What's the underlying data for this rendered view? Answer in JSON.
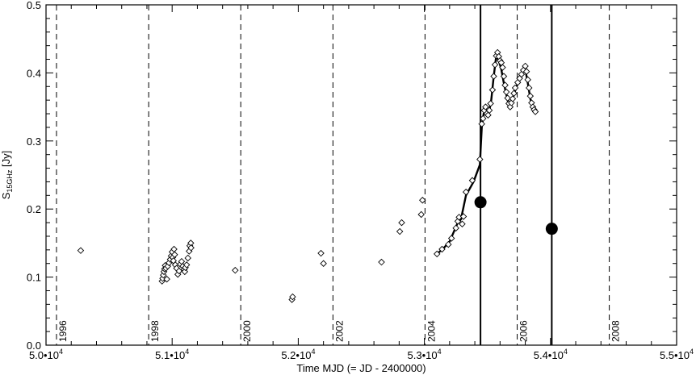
{
  "chart_data": {
    "type": "scatter",
    "xlabel": "Time MJD (= JD - 2400000)",
    "ylabel": "S",
    "ylabel_sub": "15GHz",
    "ylabel_unit": " [Jy]",
    "xlim": [
      50000,
      55000
    ],
    "ylim": [
      0.0,
      0.5
    ],
    "xticks": [
      {
        "value": 50000,
        "mant": "5.0",
        "exp": "4"
      },
      {
        "value": 51000,
        "mant": "5.1",
        "exp": "4"
      },
      {
        "value": 52000,
        "mant": "5.2",
        "exp": "4"
      },
      {
        "value": 53000,
        "mant": "5.3",
        "exp": "4"
      },
      {
        "value": 54000,
        "mant": "5.4",
        "exp": "4"
      },
      {
        "value": 55000,
        "mant": "5.5",
        "exp": "4"
      }
    ],
    "yticks": [
      {
        "value": 0.0,
        "label": "0.0"
      },
      {
        "value": 0.1,
        "label": "0.1"
      },
      {
        "value": 0.2,
        "label": "0.2"
      },
      {
        "value": 0.3,
        "label": "0.3"
      },
      {
        "value": 0.4,
        "label": "0.4"
      },
      {
        "value": 0.5,
        "label": "0.5"
      }
    ],
    "year_markers": [
      {
        "mjd": 50083,
        "label": "1996"
      },
      {
        "mjd": 50814,
        "label": "1998"
      },
      {
        "mjd": 51544,
        "label": "2000"
      },
      {
        "mjd": 52275,
        "label": "2002"
      },
      {
        "mjd": 53005,
        "label": "2004"
      },
      {
        "mjd": 53736,
        "label": "2006"
      },
      {
        "mjd": 54466,
        "label": "2008"
      }
    ],
    "event_lines": [
      53445,
      54010
    ],
    "series": [
      {
        "marker": "diamond",
        "points": [
          [
            50275,
            0.139
          ],
          [
            50920,
            0.094
          ],
          [
            50925,
            0.098
          ],
          [
            50930,
            0.103
          ],
          [
            50935,
            0.108
          ],
          [
            50940,
            0.112
          ],
          [
            50945,
            0.117
          ],
          [
            50950,
            0.113
          ],
          [
            50958,
            0.097
          ],
          [
            50965,
            0.116
          ],
          [
            50975,
            0.121
          ],
          [
            50985,
            0.126
          ],
          [
            50992,
            0.131
          ],
          [
            51000,
            0.137
          ],
          [
            51005,
            0.129
          ],
          [
            51010,
            0.124
          ],
          [
            51015,
            0.141
          ],
          [
            51020,
            0.133
          ],
          [
            51025,
            0.118
          ],
          [
            51035,
            0.113
          ],
          [
            51045,
            0.104
          ],
          [
            51055,
            0.109
          ],
          [
            51065,
            0.119
          ],
          [
            51075,
            0.123
          ],
          [
            51085,
            0.116
          ],
          [
            51095,
            0.111
          ],
          [
            51100,
            0.108
          ],
          [
            51105,
            0.114
          ],
          [
            51115,
            0.118
          ],
          [
            51125,
            0.128
          ],
          [
            51135,
            0.138
          ],
          [
            51140,
            0.146
          ],
          [
            51148,
            0.15
          ],
          [
            51150,
            0.143
          ],
          [
            51500,
            0.11
          ],
          [
            51950,
            0.067
          ],
          [
            51955,
            0.071
          ],
          [
            52180,
            0.135
          ],
          [
            52200,
            0.12
          ],
          [
            52660,
            0.122
          ],
          [
            52805,
            0.167
          ],
          [
            52820,
            0.18
          ],
          [
            52975,
            0.192
          ],
          [
            52985,
            0.213
          ],
          [
            53100,
            0.134
          ],
          [
            53140,
            0.141
          ],
          [
            53190,
            0.148
          ],
          [
            53215,
            0.157
          ],
          [
            53250,
            0.172
          ],
          [
            53265,
            0.182
          ],
          [
            53275,
            0.188
          ],
          [
            53300,
            0.178
          ],
          [
            53310,
            0.189
          ],
          [
            53330,
            0.225
          ],
          [
            53380,
            0.242
          ],
          [
            53440,
            0.273
          ],
          [
            53455,
            0.325
          ],
          [
            53465,
            0.333
          ],
          [
            53475,
            0.345
          ],
          [
            53485,
            0.35
          ],
          [
            53495,
            0.34
          ],
          [
            53505,
            0.338
          ],
          [
            53515,
            0.345
          ],
          [
            53525,
            0.355
          ],
          [
            53540,
            0.375
          ],
          [
            53550,
            0.395
          ],
          [
            53560,
            0.412
          ],
          [
            53570,
            0.425
          ],
          [
            53580,
            0.43
          ],
          [
            53590,
            0.424
          ],
          [
            53600,
            0.418
          ],
          [
            53610,
            0.415
          ],
          [
            53620,
            0.408
          ],
          [
            53630,
            0.395
          ],
          [
            53640,
            0.382
          ],
          [
            53650,
            0.372
          ],
          [
            53660,
            0.363
          ],
          [
            53670,
            0.355
          ],
          [
            53680,
            0.35
          ],
          [
            53690,
            0.356
          ],
          [
            53700,
            0.362
          ],
          [
            53710,
            0.37
          ],
          [
            53720,
            0.378
          ],
          [
            53740,
            0.386
          ],
          [
            53755,
            0.392
          ],
          [
            53770,
            0.398
          ],
          [
            53785,
            0.404
          ],
          [
            53800,
            0.41
          ],
          [
            53810,
            0.402
          ],
          [
            53820,
            0.39
          ],
          [
            53830,
            0.378
          ],
          [
            53840,
            0.366
          ],
          [
            53850,
            0.356
          ],
          [
            53860,
            0.35
          ],
          [
            53870,
            0.346
          ],
          [
            53880,
            0.343
          ]
        ]
      },
      {
        "marker": "line",
        "points": [
          [
            53100,
            0.134
          ],
          [
            53150,
            0.142
          ],
          [
            53200,
            0.152
          ],
          [
            53260,
            0.178
          ],
          [
            53290,
            0.185
          ],
          [
            53330,
            0.22
          ],
          [
            53390,
            0.24
          ],
          [
            53440,
            0.265
          ],
          [
            53455,
            0.32
          ],
          [
            53470,
            0.34
          ],
          [
            53490,
            0.345
          ],
          [
            53510,
            0.34
          ],
          [
            53530,
            0.36
          ],
          [
            53550,
            0.395
          ],
          [
            53570,
            0.425
          ],
          [
            53590,
            0.418
          ],
          [
            53610,
            0.405
          ],
          [
            53630,
            0.385
          ],
          [
            53650,
            0.368
          ],
          [
            53670,
            0.352
          ],
          [
            53690,
            0.355
          ],
          [
            53710,
            0.368
          ],
          [
            53740,
            0.385
          ],
          [
            53770,
            0.398
          ],
          [
            53800,
            0.405
          ],
          [
            53820,
            0.385
          ],
          [
            53840,
            0.362
          ],
          [
            53860,
            0.35
          ],
          [
            53880,
            0.345
          ]
        ]
      },
      {
        "marker": "filled-circle",
        "points": [
          [
            53445,
            0.21
          ],
          [
            54010,
            0.171
          ]
        ]
      }
    ]
  }
}
